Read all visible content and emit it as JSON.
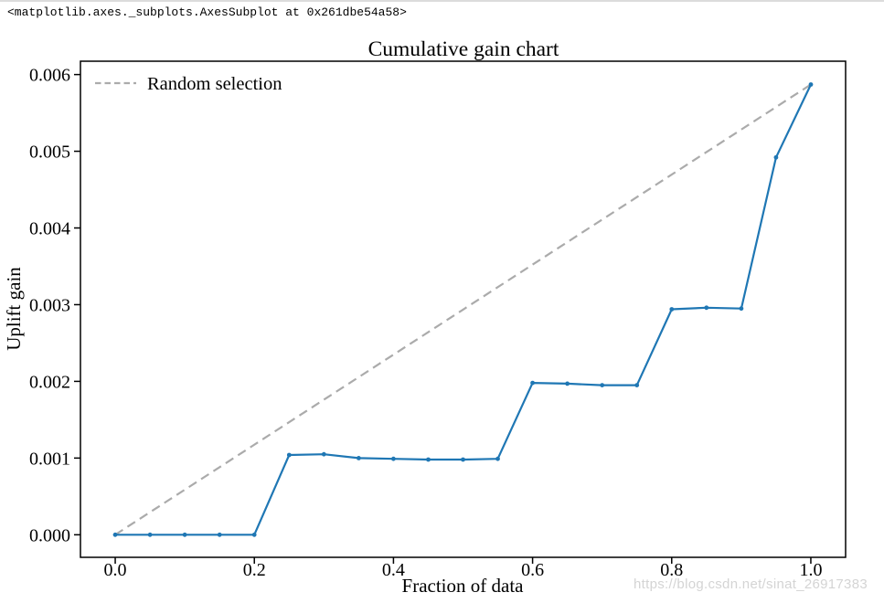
{
  "notebook": {
    "repr_text": "<matplotlib.axes._subplots.AxesSubplot at 0x261dbe54a58>"
  },
  "watermark": {
    "text": "https://blog.csdn.net/sinat_26917383",
    "color": "#d4d4d4"
  },
  "chart_data": {
    "type": "line",
    "title": "Cumulative gain chart",
    "xlabel": "Fraction of data",
    "ylabel": "Uplift gain",
    "xlim": [
      -0.05,
      1.05
    ],
    "ylim": [
      -0.000294,
      0.006174
    ],
    "grid": false,
    "xticks": [
      0.0,
      0.2,
      0.4,
      0.6,
      0.8,
      1.0
    ],
    "xtick_labels": [
      "0.0",
      "0.2",
      "0.4",
      "0.6",
      "0.8",
      "1.0"
    ],
    "yticks": [
      0.0,
      0.001,
      0.002,
      0.003,
      0.004,
      0.005,
      0.006
    ],
    "ytick_labels": [
      "0.000",
      "0.001",
      "0.002",
      "0.003",
      "0.004",
      "0.005",
      "0.006"
    ],
    "legend": {
      "position": "upper left",
      "entries": [
        {
          "label": "Random selection",
          "series": "random-selection-line"
        }
      ]
    },
    "x": [
      0.0,
      0.05,
      0.1,
      0.15,
      0.2,
      0.25,
      0.3,
      0.35,
      0.4,
      0.45,
      0.5,
      0.55,
      0.6,
      0.65,
      0.7,
      0.75,
      0.8,
      0.85,
      0.9,
      0.95,
      1.0
    ],
    "series": [
      {
        "name": "random-selection-line",
        "color": "#ababab",
        "style": "dashed",
        "markers": false,
        "x": [
          0.0,
          1.0
        ],
        "y": [
          0.0,
          0.00587
        ]
      },
      {
        "name": "uplift-gain-curve",
        "color": "#1f77b4",
        "style": "solid",
        "markers": true,
        "y": [
          0.0,
          0.0,
          0.0,
          0.0,
          0.0,
          0.00104,
          0.00105,
          0.001,
          0.00099,
          0.00098,
          0.00098,
          0.00099,
          0.00198,
          0.00197,
          0.00195,
          0.00195,
          0.00294,
          0.00296,
          0.00295,
          0.00492,
          0.00587
        ]
      }
    ]
  }
}
